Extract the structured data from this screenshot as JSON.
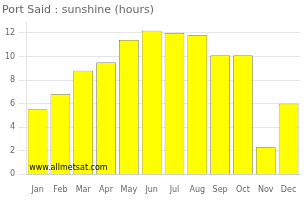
{
  "chart_data": {
    "type": "bar",
    "title": "Port Said : sunshine (hours)",
    "categories": [
      "Jan",
      "Feb",
      "Mar",
      "Apr",
      "May",
      "Jun",
      "Jul",
      "Aug",
      "Sep",
      "Oct",
      "Nov",
      "Dec"
    ],
    "values": [
      5.5,
      6.8,
      8.8,
      9.5,
      11.4,
      12.2,
      12.0,
      11.8,
      10.1,
      10.1,
      2.3,
      6.0
    ],
    "color": "#FFFF00",
    "ylim": [
      0,
      13
    ],
    "yticks": [
      0,
      2,
      4,
      6,
      8,
      10,
      12
    ],
    "grid": true,
    "annotations": [
      "www.allmetsat.com"
    ]
  }
}
